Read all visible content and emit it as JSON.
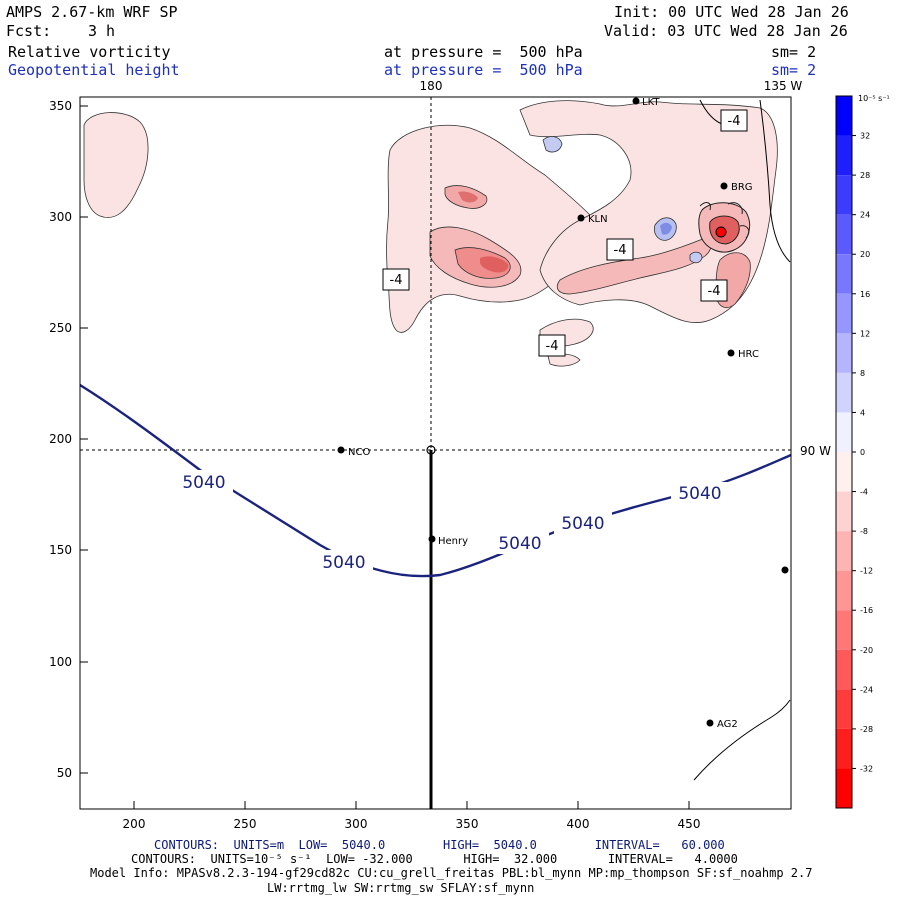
{
  "header": {
    "model": "AMPS 2.67-km WRF SP",
    "fcst_label": "Fcst:",
    "fcst_value": "3 h",
    "init": "Init: 00 UTC Wed 28 Jan 26",
    "valid": "Valid: 03 UTC Wed 28 Jan 26",
    "field1": "Relative vorticity",
    "field2": "Geopotential height",
    "pressure1": "at pressure =  500 hPa",
    "pressure2": "at pressure =  500 hPa",
    "sm1": "sm= 2",
    "sm2": "sm= 2"
  },
  "map": {
    "x_ticks": [
      "200",
      "250",
      "300",
      "350",
      "400",
      "450"
    ],
    "y_ticks": [
      "350",
      "300",
      "250",
      "200",
      "150",
      "100",
      "50"
    ],
    "meridian_180": "180",
    "meridian_135w": "135 W",
    "meridian_90w": "90 W",
    "stations": [
      "NCO",
      "Henry",
      "KLN",
      "BRG",
      "HRC",
      "AG2",
      "LKT"
    ],
    "height_contour_labels": [
      "5040",
      "5040",
      "5040",
      "5040",
      "5040"
    ],
    "vorticity_labels": [
      "-4",
      "-4",
      "-4",
      "-4",
      "-4"
    ],
    "colorbar": {
      "unit": "10⁻⁵ s⁻¹",
      "ticks": [
        "32",
        "28",
        "24",
        "20",
        "16",
        "12",
        "8",
        "4",
        "0",
        "-4",
        "-8",
        "-12",
        "-16",
        "-20",
        "-24",
        "-28",
        "-32"
      ]
    }
  },
  "footer": {
    "line1": "CONTOURS:  UNITS=m  LOW=  5040.0        HIGH=  5040.0        INTERVAL=   60.000",
    "line2": "CONTOURS:  UNITS=10⁻⁵ s⁻¹  LOW= -32.000       HIGH=  32.000       INTERVAL=   4.0000",
    "line3": "Model Info: MPASv8.2.3-194-gf29cd82c CU:cu_grell_freitas PBL:bl_mynn MP:mp_thompson SF:sf_noahmp 2.7",
    "line4": "LW:rrtmg_lw SW:rrtmg_sw SFLAY:sf_mynn"
  },
  "colors": {
    "height_contour": "#1a237e",
    "positive_max": "#0000ff",
    "negative_max": "#ff0000"
  }
}
